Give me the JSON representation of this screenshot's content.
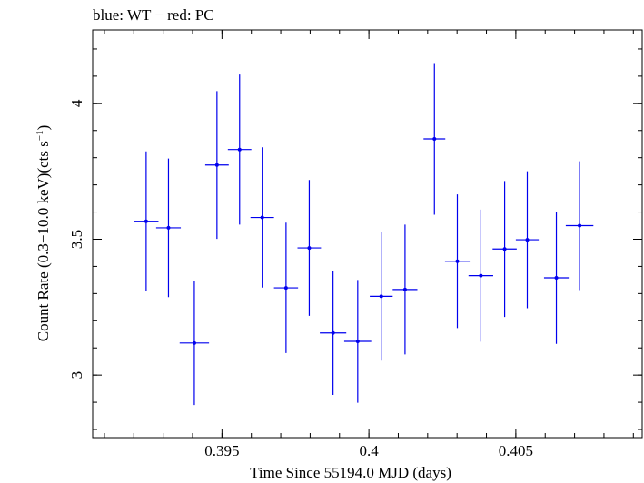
{
  "chart_data": {
    "type": "scatter",
    "title": "blue: WT − red: PC",
    "xlabel": "Time Since 55194.0 MJD (days)",
    "ylabel_main": "Count Rate (0.3−10.0 keV)(cts s",
    "ylabel_sup": "−1",
    "ylabel_close": ")",
    "xlim": [
      0.3906,
      0.4093
    ],
    "ylim": [
      2.77,
      4.27
    ],
    "xticks": [
      {
        "value": 0.395,
        "label": "0.395"
      },
      {
        "value": 0.4,
        "label": "0.4"
      },
      {
        "value": 0.405,
        "label": "0.405"
      }
    ],
    "yticks": [
      {
        "value": 3.0,
        "label": "3"
      },
      {
        "value": 3.5,
        "label": "3.5"
      },
      {
        "value": 4.0,
        "label": "4"
      }
    ],
    "grid": false,
    "color": "#0000ee",
    "series": [
      {
        "points": [
          {
            "x": 0.39242,
            "xerr": 0.00042,
            "y": 3.566,
            "yerr": 0.257
          },
          {
            "x": 0.39318,
            "xerr": 0.00042,
            "y": 3.542,
            "yerr": 0.255
          },
          {
            "x": 0.39406,
            "xerr": 0.0005,
            "y": 3.118,
            "yerr": 0.228
          },
          {
            "x": 0.39483,
            "xerr": 0.0004,
            "y": 3.773,
            "yerr": 0.272
          },
          {
            "x": 0.3956,
            "xerr": 0.0004,
            "y": 3.83,
            "yerr": 0.276
          },
          {
            "x": 0.39637,
            "xerr": 0.0004,
            "y": 3.58,
            "yerr": 0.258
          },
          {
            "x": 0.39718,
            "xerr": 0.00041,
            "y": 3.321,
            "yerr": 0.24
          },
          {
            "x": 0.39797,
            "xerr": 0.0004,
            "y": 3.468,
            "yerr": 0.25
          },
          {
            "x": 0.39878,
            "xerr": 0.00045,
            "y": 3.155,
            "yerr": 0.228
          },
          {
            "x": 0.39962,
            "xerr": 0.00046,
            "y": 3.124,
            "yerr": 0.226
          },
          {
            "x": 0.40042,
            "xerr": 0.00039,
            "y": 3.29,
            "yerr": 0.237
          },
          {
            "x": 0.40123,
            "xerr": 0.00042,
            "y": 3.315,
            "yerr": 0.239
          },
          {
            "x": 0.40223,
            "xerr": 0.00037,
            "y": 3.869,
            "yerr": 0.279
          },
          {
            "x": 0.40301,
            "xerr": 0.00042,
            "y": 3.419,
            "yerr": 0.246
          },
          {
            "x": 0.40381,
            "xerr": 0.00042,
            "y": 3.366,
            "yerr": 0.243
          },
          {
            "x": 0.40462,
            "xerr": 0.00041,
            "y": 3.464,
            "yerr": 0.25
          },
          {
            "x": 0.40539,
            "xerr": 0.00039,
            "y": 3.498,
            "yerr": 0.252
          },
          {
            "x": 0.40638,
            "xerr": 0.00042,
            "y": 3.358,
            "yerr": 0.243
          },
          {
            "x": 0.40717,
            "xerr": 0.00047,
            "y": 3.55,
            "yerr": 0.237
          }
        ]
      }
    ]
  }
}
